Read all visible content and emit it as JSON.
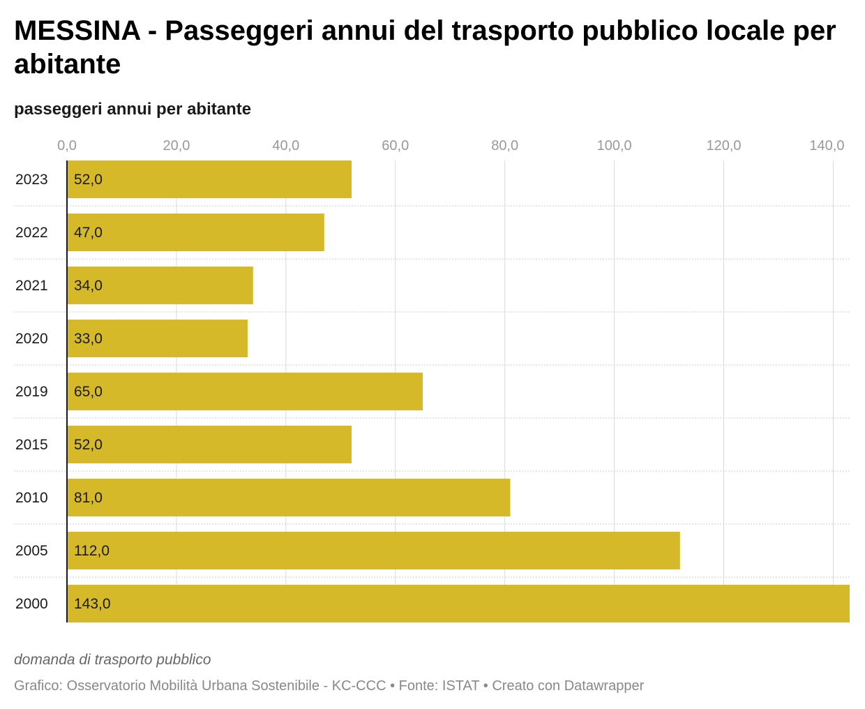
{
  "title": "MESSINA - Passeggeri annui del trasporto pubblico locale per abitante",
  "subtitle": "passeggeri annui per abitante",
  "notes": "domanda di trasporto pubblico",
  "footer": "Grafico: Osservatorio Mobilità Urbana Sostenibile - KC-CCC • Fonte: ISTAT • Creato con Datawrapper",
  "colors": {
    "bar": "#d5b928",
    "grid": "#d9d9d9",
    "tick_text": "#999999"
  },
  "chart_data": {
    "type": "bar",
    "orientation": "horizontal",
    "categories": [
      "2023",
      "2022",
      "2021",
      "2020",
      "2019",
      "2015",
      "2010",
      "2005",
      "2000"
    ],
    "values": [
      52.0,
      47.0,
      34.0,
      33.0,
      65.0,
      52.0,
      81.0,
      112.0,
      143.0
    ],
    "value_labels": [
      "52,0",
      "47,0",
      "34,0",
      "33,0",
      "65,0",
      "52,0",
      "81,0",
      "112,0",
      "143,0"
    ],
    "xticks": [
      0,
      20,
      40,
      60,
      80,
      100,
      120,
      140
    ],
    "xtick_labels": [
      "0,0",
      "20,0",
      "40,0",
      "60,0",
      "80,0",
      "100,0",
      "120,0",
      "140,0"
    ],
    "xlim": [
      0,
      143
    ],
    "xlabel": "",
    "ylabel": "",
    "grid": true
  }
}
